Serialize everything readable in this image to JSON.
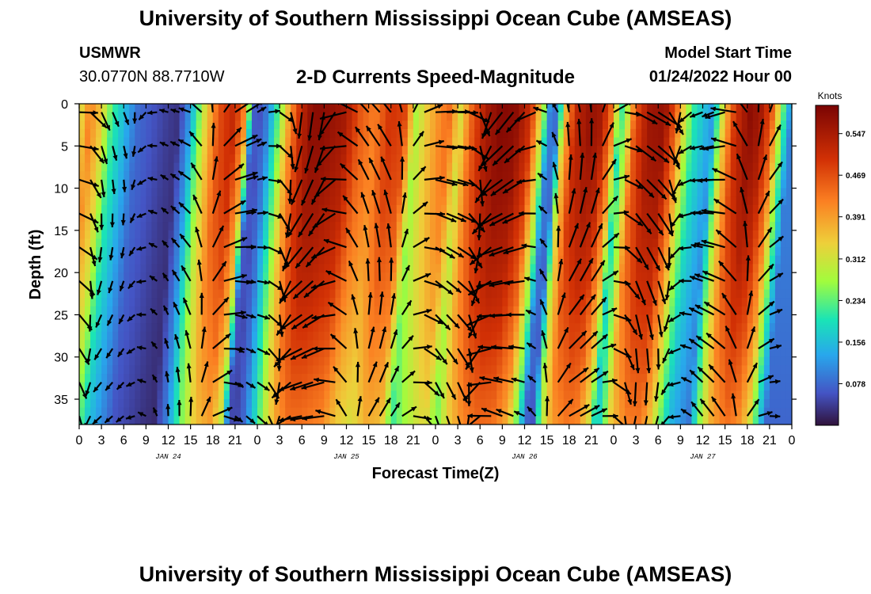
{
  "header": {
    "title": "University of Southern Mississippi Ocean Cube (AMSEAS)",
    "station": "USMWR",
    "coords": "30.0770N  88.7710W",
    "subtitle": "2-D Currents Speed-Magnitude",
    "model_label": "Model Start Time",
    "model_value": "01/24/2022 Hour 00"
  },
  "footer": {
    "title": "University of Southern Mississippi Ocean Cube (AMSEAS)"
  },
  "chart_data": {
    "type": "heatmap",
    "title": "2-D Currents Speed-Magnitude",
    "xlabel": "Forecast Time(Z)",
    "ylabel": "Depth (ft)",
    "x_tick_labels": [
      "0",
      "3",
      "6",
      "9",
      "12",
      "15",
      "18",
      "21",
      "0",
      "3",
      "6",
      "9",
      "12",
      "15",
      "18",
      "21",
      "0",
      "3",
      "6",
      "9",
      "12",
      "15",
      "18",
      "21",
      "0",
      "3",
      "6",
      "9",
      "12",
      "15",
      "18",
      "21",
      "0"
    ],
    "x_range_hours": [
      0,
      96
    ],
    "day_labels": [
      "JAN 24",
      "JAN 25",
      "JAN 26",
      "JAN 27"
    ],
    "y_ticks": [
      0,
      5,
      10,
      15,
      20,
      25,
      30,
      35
    ],
    "y_range": [
      0,
      38
    ],
    "colorbar": {
      "title": "Knots",
      "ticks": [
        0.547,
        0.469,
        0.391,
        0.312,
        0.234,
        0.156,
        0.078
      ],
      "range": [
        0,
        0.6
      ]
    },
    "speed_profile_surface": [
      [
        0,
        0.3
      ],
      [
        1.5,
        0.42
      ],
      [
        3,
        0.35
      ],
      [
        4.5,
        0.22
      ],
      [
        6,
        0.16
      ],
      [
        8,
        0.08
      ],
      [
        10,
        0.06
      ],
      [
        12,
        0.04
      ],
      [
        13.5,
        0.03
      ],
      [
        15,
        0.12
      ],
      [
        17,
        0.32
      ],
      [
        19,
        0.47
      ],
      [
        21,
        0.52
      ],
      [
        22.5,
        0.4
      ],
      [
        23.5,
        0.07
      ],
      [
        24.5,
        0.06
      ],
      [
        25.5,
        0.1
      ],
      [
        27,
        0.24
      ],
      [
        28.5,
        0.4
      ],
      [
        30,
        0.52
      ],
      [
        31.5,
        0.58
      ],
      [
        33,
        0.58
      ],
      [
        36,
        0.55
      ],
      [
        38,
        0.46
      ],
      [
        40,
        0.42
      ],
      [
        42,
        0.5
      ],
      [
        44,
        0.48
      ],
      [
        45.5,
        0.28
      ],
      [
        47,
        0.35
      ],
      [
        49,
        0.42
      ],
      [
        50,
        0.44
      ],
      [
        51.5,
        0.32
      ],
      [
        53,
        0.45
      ],
      [
        55,
        0.55
      ],
      [
        57,
        0.59
      ],
      [
        59,
        0.58
      ],
      [
        61,
        0.5
      ],
      [
        62.5,
        0.3
      ],
      [
        63.5,
        0.1
      ],
      [
        64.5,
        0.08
      ],
      [
        65.5,
        0.35
      ],
      [
        67,
        0.52
      ],
      [
        69,
        0.57
      ],
      [
        70.5,
        0.55
      ],
      [
        72,
        0.42
      ],
      [
        73,
        0.2
      ],
      [
        74,
        0.3
      ],
      [
        75,
        0.46
      ],
      [
        77,
        0.56
      ],
      [
        79,
        0.57
      ],
      [
        80.5,
        0.45
      ],
      [
        82,
        0.28
      ],
      [
        83,
        0.2
      ],
      [
        84.5,
        0.15
      ],
      [
        85.5,
        0.12
      ],
      [
        86,
        0.2
      ],
      [
        87,
        0.35
      ],
      [
        88.5,
        0.5
      ],
      [
        90.5,
        0.58
      ],
      [
        92,
        0.55
      ],
      [
        93.5,
        0.45
      ],
      [
        95,
        0.22
      ],
      [
        96,
        0.1
      ]
    ],
    "vectors": "current direction arrows on a grid every 1.5 h x 4 ft"
  }
}
